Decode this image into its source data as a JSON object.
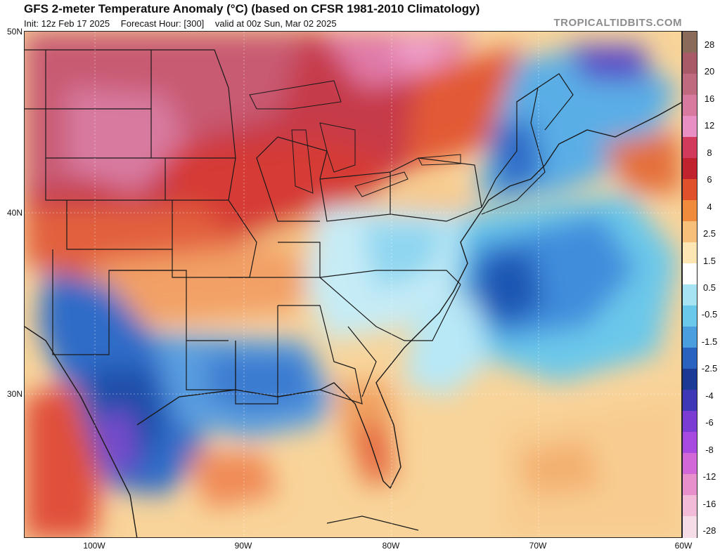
{
  "header": {
    "title": "GFS 2-meter Temperature Anomaly (°C) (based on CFSR 1981-2010 Climatology)",
    "init": "Init: 12z Feb 17 2025",
    "forecast_hour": "Forecast Hour: [300]",
    "valid": "valid at 00z Sun, Mar 02 2025",
    "brand": "TROPICALTIDBITS.COM"
  },
  "axes": {
    "lat_labels": [
      "50N",
      "40N",
      "30N"
    ],
    "lon_labels": [
      "100W",
      "90W",
      "80W",
      "70W",
      "60W"
    ]
  },
  "colorbar": {
    "labels": [
      "28",
      "20",
      "16",
      "12",
      "8",
      "6",
      "4",
      "2.5",
      "1.5",
      "0.5",
      "-0.5",
      "-1.5",
      "-2.5",
      "-4",
      "-6",
      "-8",
      "-12",
      "-16",
      "-28"
    ],
    "colors": [
      "#8a6a58",
      "#a85a66",
      "#c06a80",
      "#d87aa0",
      "#e890c4",
      "#d23a5c",
      "#c0222e",
      "#e0502a",
      "#f08a3c",
      "#f6c07a",
      "#fde6b4",
      "#ffffff",
      "#a6e4f4",
      "#6ac8ea",
      "#4a9ede",
      "#2a62c0",
      "#1a3a96",
      "#3e38b6",
      "#7a3cd2",
      "#a84ae0",
      "#d268d8",
      "#e890cc",
      "#f2bcd8",
      "#f6dce6"
    ]
  }
}
